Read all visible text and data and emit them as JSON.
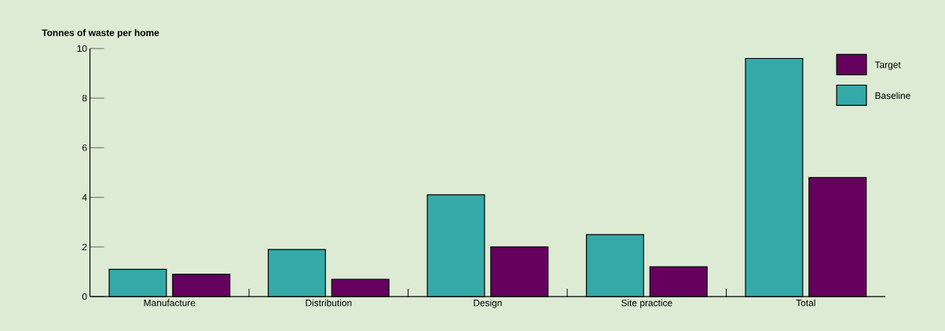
{
  "chart_data": {
    "type": "bar",
    "ylabel": "Tonnes of waste per home",
    "categories": [
      "Manufacture",
      "Distribution",
      "Design",
      "Site practice",
      "Total"
    ],
    "series": [
      {
        "name": "Baseline",
        "color": "#35a9a8",
        "values": [
          1.1,
          1.9,
          4.1,
          2.5,
          9.6
        ]
      },
      {
        "name": "Target",
        "color": "#66005e",
        "values": [
          0.9,
          0.7,
          2.0,
          1.2,
          4.8
        ]
      }
    ],
    "ylim": [
      0,
      10
    ],
    "yticks": [
      0,
      2,
      4,
      6,
      8,
      10
    ],
    "legend": "top right",
    "grid": false
  }
}
